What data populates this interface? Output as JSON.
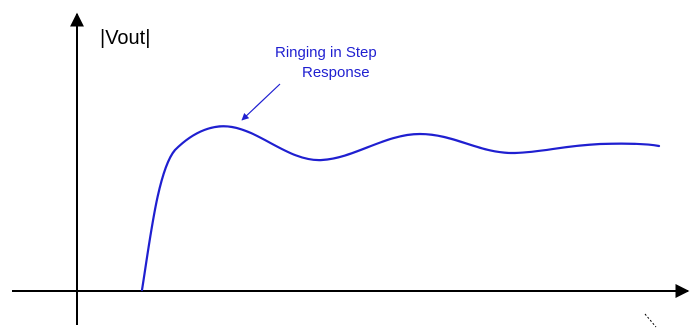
{
  "diagram": {
    "y_axis_label": "|Vout|",
    "annotation": {
      "line1": "Ringing in Step",
      "line2": "Response"
    }
  },
  "colors": {
    "curve": "#1f1fd0",
    "annotation": "#1f1fd0",
    "axis": "#000000"
  }
}
